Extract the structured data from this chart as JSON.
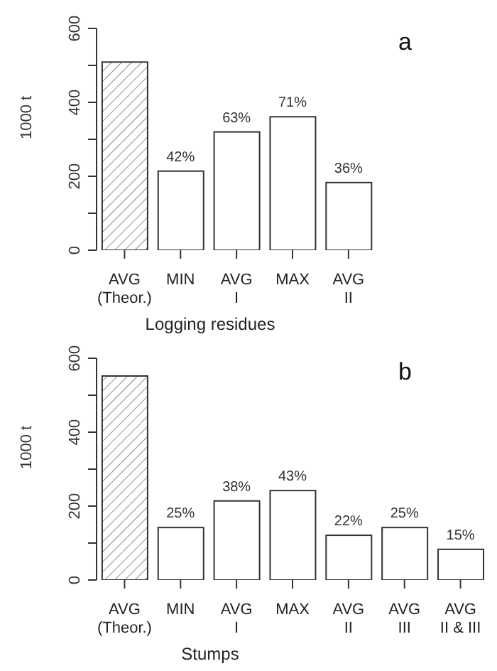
{
  "chart_data": [
    {
      "type": "bar",
      "xlabel": "Logging residues",
      "ylabel": "1000 t",
      "categories": [
        "AVG\n(Theor.)",
        "MIN",
        "AVG\nI",
        "MAX",
        "AVG\nII"
      ],
      "values": [
        509,
        214,
        320,
        361,
        183
      ],
      "colors": [
        "#909090",
        "#ffffff",
        "#ffffff",
        "#ffffff",
        "#ffffff"
      ],
      "ylim": [
        0,
        600
      ],
      "yticks": [
        0,
        {
          "value": 100,
          "label": null
        },
        200,
        {
          "value": 300,
          "label": null
        },
        400,
        {
          "value": 500,
          "label": null
        },
        600
      ],
      "grid": false,
      "legend": false,
      "annotations": [
        "a",
        {
          "text": "42%",
          "x": "MIN",
          "y": 214
        },
        {
          "text": "63%",
          "x": "AVG\nI",
          "y": 320
        },
        {
          "text": "71%",
          "x": "MAX",
          "y": 361
        },
        {
          "text": "36%",
          "x": "AVG\nII",
          "y": 183
        }
      ]
    },
    {
      "type": "bar",
      "xlabel": "Stumps",
      "ylabel": "1000 t",
      "categories": [
        "AVG\n(Theor.)",
        "MIN",
        "AVG\nI",
        "MAX",
        "AVG\nII",
        "AVG\nIII",
        "AVG\nII & III"
      ],
      "values": [
        552,
        142,
        214,
        242,
        121,
        142,
        83
      ],
      "colors": [
        "#909090",
        "#ffffff",
        "#ffffff",
        "#ffffff",
        "#ffffff",
        "#ffffff",
        "#ffffff"
      ],
      "ylim": [
        0,
        600
      ],
      "yticks": [
        0,
        {
          "value": 100,
          "label": null
        },
        200,
        {
          "value": 300,
          "label": null
        },
        400,
        {
          "value": 500,
          "label": null
        },
        600
      ],
      "grid": false,
      "legend": false,
      "annotations": [
        "b",
        {
          "text": "25%",
          "x": "MIN",
          "y": 142
        },
        {
          "text": "38%",
          "x": "AVG\nI",
          "y": 214
        },
        {
          "text": "43%",
          "x": "MAX",
          "y": 242
        },
        {
          "text": "22%",
          "x": "AVG\nII",
          "y": 121
        },
        {
          "text": "25%",
          "x": "AVG\nIII",
          "y": 142
        },
        {
          "text": "15%",
          "x": "AVG\nII & III",
          "y": 83
        }
      ]
    }
  ]
}
